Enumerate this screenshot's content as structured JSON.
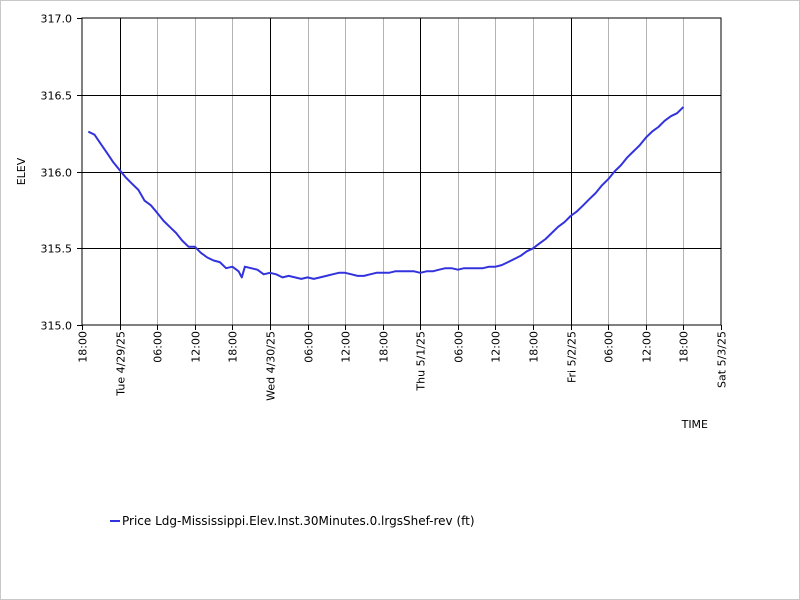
{
  "chart_data": {
    "type": "line",
    "title": "",
    "xlabel": "TIME",
    "ylabel": "ELEV",
    "ylim": [
      315.0,
      317.0
    ],
    "y_ticks": [
      "317.0",
      "316.5",
      "316.0",
      "315.5",
      "315.0"
    ],
    "y_tick_values": [
      317.0,
      316.5,
      316.0,
      315.5,
      315.0
    ],
    "x_range_hours": [
      0,
      102
    ],
    "x_ticks": [
      {
        "h": 0,
        "label": "18:00",
        "major": false
      },
      {
        "h": 6,
        "label": "Tue 4/29/25",
        "major": true
      },
      {
        "h": 12,
        "label": "06:00",
        "major": false
      },
      {
        "h": 18,
        "label": "12:00",
        "major": false
      },
      {
        "h": 24,
        "label": "18:00",
        "major": false
      },
      {
        "h": 30,
        "label": "Wed 4/30/25",
        "major": true
      },
      {
        "h": 36,
        "label": "06:00",
        "major": false
      },
      {
        "h": 42,
        "label": "12:00",
        "major": false
      },
      {
        "h": 48,
        "label": "18:00",
        "major": false
      },
      {
        "h": 54,
        "label": "Thu 5/1/25",
        "major": true
      },
      {
        "h": 60,
        "label": "06:00",
        "major": false
      },
      {
        "h": 66,
        "label": "12:00",
        "major": false
      },
      {
        "h": 72,
        "label": "18:00",
        "major": false
      },
      {
        "h": 78,
        "label": "Fri 5/2/25",
        "major": true
      },
      {
        "h": 84,
        "label": "06:00",
        "major": false
      },
      {
        "h": 90,
        "label": "12:00",
        "major": false
      },
      {
        "h": 96,
        "label": "18:00",
        "major": false
      },
      {
        "h": 102,
        "label": "Sat 5/3/25",
        "major": true
      }
    ],
    "grid": true,
    "legend_position": "bottom-left",
    "series": [
      {
        "name": "Price Ldg-Mississippi.Elev.Inst.30Minutes.0.lrgsShef-rev (ft)",
        "color": "#3333dd",
        "x_hours": [
          1,
          2,
          3,
          4,
          5,
          6,
          7,
          8,
          9,
          10,
          11,
          12,
          13,
          14,
          15,
          16,
          17,
          18,
          19,
          20,
          21,
          22,
          23,
          24,
          25,
          25.5,
          26,
          27,
          28,
          29,
          30,
          31,
          32,
          33,
          34,
          35,
          36,
          37,
          38,
          39,
          40,
          41,
          42,
          43,
          44,
          45,
          46,
          47,
          48,
          49,
          50,
          51,
          52,
          53,
          54,
          55,
          56,
          57,
          58,
          59,
          60,
          61,
          62,
          63,
          64,
          65,
          66,
          67,
          68,
          69,
          70,
          71,
          72,
          73,
          74,
          75,
          76,
          77,
          78,
          79,
          80,
          81,
          82,
          83,
          84,
          85,
          86,
          87,
          88,
          89,
          90,
          91,
          92,
          93,
          94,
          95,
          96
        ],
        "values": [
          316.26,
          316.24,
          316.18,
          316.12,
          316.06,
          316.01,
          315.96,
          315.92,
          315.88,
          315.81,
          315.78,
          315.73,
          315.68,
          315.64,
          315.6,
          315.55,
          315.51,
          315.51,
          315.47,
          315.44,
          315.42,
          315.41,
          315.37,
          315.38,
          315.35,
          315.31,
          315.38,
          315.37,
          315.36,
          315.33,
          315.34,
          315.33,
          315.31,
          315.32,
          315.31,
          315.3,
          315.31,
          315.3,
          315.31,
          315.32,
          315.33,
          315.34,
          315.34,
          315.33,
          315.32,
          315.32,
          315.33,
          315.34,
          315.34,
          315.34,
          315.35,
          315.35,
          315.35,
          315.35,
          315.34,
          315.35,
          315.35,
          315.36,
          315.37,
          315.37,
          315.36,
          315.37,
          315.37,
          315.37,
          315.37,
          315.38,
          315.38,
          315.39,
          315.41,
          315.43,
          315.45,
          315.48,
          315.5,
          315.53,
          315.56,
          315.6,
          315.64,
          315.67,
          315.71,
          315.74,
          315.78,
          315.82,
          315.86,
          315.91,
          315.95,
          316.0,
          316.04,
          316.09,
          316.13,
          316.17,
          316.22,
          316.26,
          316.29,
          316.33,
          316.36,
          316.38,
          316.42
        ]
      }
    ]
  }
}
